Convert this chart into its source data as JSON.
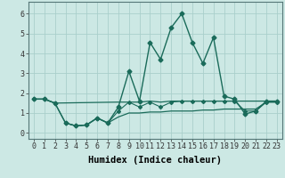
{
  "xlabel": "Humidex (Indice chaleur)",
  "xlim": [
    -0.5,
    23.5
  ],
  "ylim": [
    -0.3,
    6.6
  ],
  "background_color": "#cce8e4",
  "grid_color": "#aacfcb",
  "line_color": "#1a6b5a",
  "series": [
    {
      "x": [
        0,
        1,
        2,
        3,
        4,
        5,
        6,
        7,
        8,
        9,
        10,
        11,
        12,
        13,
        14,
        15,
        16,
        17,
        18,
        19,
        20,
        21,
        22,
        23
      ],
      "y": [
        1.7,
        1.7,
        1.5,
        0.5,
        0.35,
        0.4,
        0.75,
        0.5,
        1.3,
        3.1,
        1.6,
        4.55,
        3.7,
        5.3,
        6.0,
        4.55,
        3.5,
        4.8,
        1.85,
        1.7,
        0.95,
        1.1,
        1.6,
        1.6
      ],
      "marker": "D",
      "markersize": 2.5,
      "linewidth": 1.0
    },
    {
      "x": [
        0,
        1,
        2,
        8,
        10,
        11,
        12,
        13,
        14,
        15,
        16,
        17,
        18,
        19,
        20,
        21,
        22,
        23
      ],
      "y": [
        1.7,
        1.7,
        1.5,
        1.55,
        1.55,
        1.6,
        1.55,
        1.6,
        1.6,
        1.6,
        1.6,
        1.6,
        1.6,
        1.6,
        1.6,
        1.6,
        1.6,
        1.6
      ],
      "marker": null,
      "markersize": 0,
      "linewidth": 0.9
    },
    {
      "x": [
        3,
        4,
        5,
        6,
        7,
        8,
        9,
        10,
        11,
        12,
        13,
        14,
        15,
        16,
        17,
        18,
        19,
        20,
        21,
        22,
        23
      ],
      "y": [
        0.5,
        0.35,
        0.4,
        0.75,
        0.5,
        0.8,
        1.0,
        1.0,
        1.05,
        1.05,
        1.1,
        1.1,
        1.1,
        1.15,
        1.15,
        1.2,
        1.2,
        1.2,
        1.2,
        1.55,
        1.55
      ],
      "marker": null,
      "markersize": 0,
      "linewidth": 0.9
    },
    {
      "x": [
        0,
        1,
        2,
        3,
        4,
        5,
        6,
        7,
        8,
        9,
        10,
        11,
        12,
        13,
        14,
        15,
        16,
        17,
        18,
        19,
        20,
        21,
        22,
        23
      ],
      "y": [
        1.7,
        1.7,
        1.5,
        0.5,
        0.35,
        0.4,
        0.75,
        0.5,
        1.1,
        1.55,
        1.3,
        1.55,
        1.3,
        1.55,
        1.6,
        1.6,
        1.6,
        1.6,
        1.6,
        1.6,
        1.1,
        1.1,
        1.55,
        1.55
      ],
      "marker": "D",
      "markersize": 2.0,
      "linewidth": 0.8
    }
  ],
  "xtick_labels": [
    "0",
    "1",
    "2",
    "3",
    "4",
    "5",
    "6",
    "7",
    "8",
    "9",
    "10",
    "11",
    "12",
    "13",
    "14",
    "15",
    "16",
    "17",
    "18",
    "19",
    "20",
    "21",
    "22",
    "23"
  ],
  "ytick_values": [
    0,
    1,
    2,
    3,
    4,
    5,
    6
  ],
  "tick_fontsize": 6,
  "label_fontsize": 7.5
}
